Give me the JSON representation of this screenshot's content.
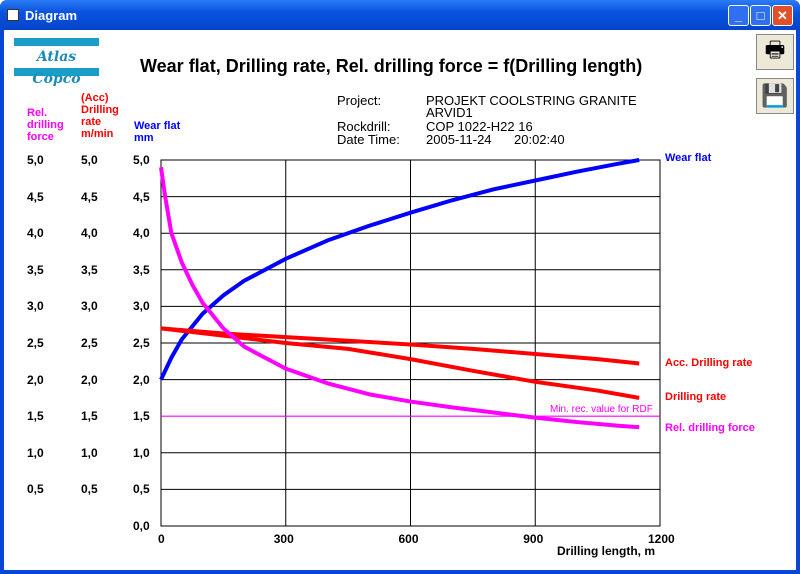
{
  "window": {
    "title": "Diagram"
  },
  "logo": "Atlas Copco",
  "chart_title": "Wear flat, Drilling rate, Rel. drilling force = f(Drilling length)",
  "info": {
    "project_label": "Project:",
    "project_value": "PROJEKT COOLSTRING GRANITE",
    "project_value2": "ARVID1",
    "rockdrill_label": "Rockdrill:",
    "rockdrill_value": "COP 1022-H22 16",
    "datetime_label": "Date  Time:",
    "date_value": "2005-11-24",
    "time_value": "20:02:40"
  },
  "axis_labels": {
    "rdf": [
      "Rel.",
      "drilling",
      "force"
    ],
    "rate": [
      "(Acc)",
      "Drilling",
      "rate",
      "m/min"
    ],
    "wear": [
      "Wear flat",
      "mm"
    ]
  },
  "colors": {
    "wear": "#0000ff",
    "rate": "#ff0000",
    "rdf": "#ff00ff"
  },
  "chart_data": {
    "type": "line",
    "title": "Wear flat, Drilling rate, Rel. drilling force = f(Drilling length)",
    "xlabel": "Drilling length, m",
    "xlim": [
      0,
      1200
    ],
    "ylim": [
      0,
      5
    ],
    "x_ticks": [
      "0",
      "300",
      "600",
      "900",
      "1200"
    ],
    "y_ticks": [
      "0,0",
      "0,5",
      "1,0",
      "1,5",
      "2,0",
      "2,5",
      "3,0",
      "3,5",
      "4,0",
      "4,5",
      "5,0"
    ],
    "grid": true,
    "annotation": {
      "text": "Min. rec. value for RDF",
      "y": 1.5
    },
    "series": [
      {
        "name": "Wear flat",
        "color": "#0000ff",
        "x": [
          0,
          25,
          50,
          100,
          150,
          200,
          300,
          400,
          500,
          600,
          700,
          800,
          900,
          1000,
          1100,
          1150
        ],
        "y": [
          2.0,
          2.3,
          2.55,
          2.9,
          3.15,
          3.35,
          3.65,
          3.9,
          4.1,
          4.28,
          4.45,
          4.6,
          4.72,
          4.84,
          4.95,
          5.0
        ]
      },
      {
        "name": "Acc. Drilling rate",
        "color": "#ff0000",
        "x": [
          0,
          150,
          300,
          450,
          600,
          750,
          900,
          1050,
          1150
        ],
        "y": [
          2.7,
          2.63,
          2.58,
          2.53,
          2.48,
          2.42,
          2.35,
          2.28,
          2.22
        ]
      },
      {
        "name": "Drilling rate",
        "color": "#ff0000",
        "x": [
          0,
          150,
          300,
          450,
          600,
          750,
          900,
          1050,
          1150
        ],
        "y": [
          2.7,
          2.6,
          2.5,
          2.42,
          2.28,
          2.12,
          1.97,
          1.85,
          1.75
        ]
      },
      {
        "name": "Rel. drilling force",
        "color": "#ff00ff",
        "x": [
          0,
          10,
          25,
          50,
          75,
          100,
          150,
          200,
          300,
          400,
          500,
          600,
          700,
          800,
          900,
          1000,
          1100,
          1150
        ],
        "y": [
          4.9,
          4.5,
          4.0,
          3.6,
          3.3,
          3.05,
          2.7,
          2.45,
          2.15,
          1.95,
          1.8,
          1.7,
          1.62,
          1.55,
          1.48,
          1.42,
          1.37,
          1.35
        ]
      }
    ]
  }
}
